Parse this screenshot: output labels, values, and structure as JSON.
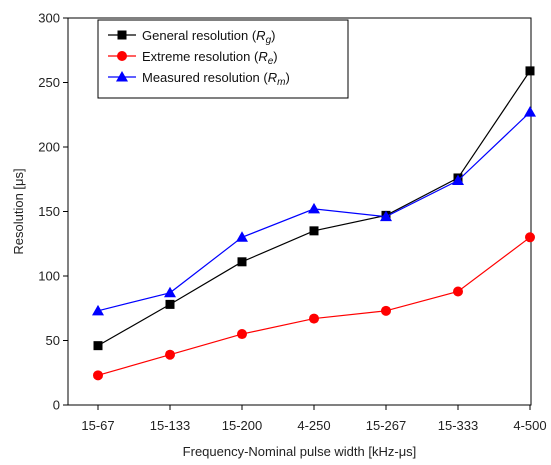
{
  "chart_data": {
    "type": "line",
    "xlabel": "Frequency-Nominal pulse width [kHz-μs]",
    "ylabel": "Resolution  [μs]",
    "ylim": [
      0,
      300
    ],
    "yticks": [
      0,
      50,
      100,
      150,
      200,
      250,
      300
    ],
    "grid": false,
    "legend_position": "top-left",
    "categories": [
      "15-67",
      "15-133",
      "15-200",
      "4-250",
      "15-267",
      "15-333",
      "4-500"
    ],
    "series": [
      {
        "name": "General resolution (",
        "symbol": "R",
        "subscript": "g",
        "suffix": ")",
        "color": "#000000",
        "marker": "square",
        "values": [
          46,
          78,
          111,
          135,
          147,
          176,
          259
        ]
      },
      {
        "name": "Extreme resolution (",
        "symbol": "R",
        "subscript": "e",
        "suffix": ")",
        "color": "#ff0000",
        "marker": "circle",
        "values": [
          23,
          39,
          55,
          67,
          73,
          88,
          130
        ]
      },
      {
        "name": "Measured resolution (",
        "symbol": "R",
        "subscript": "m",
        "suffix": ")",
        "color": "#0000ff",
        "marker": "triangle",
        "values": [
          73,
          87,
          130,
          152,
          146,
          174,
          227
        ]
      }
    ]
  }
}
